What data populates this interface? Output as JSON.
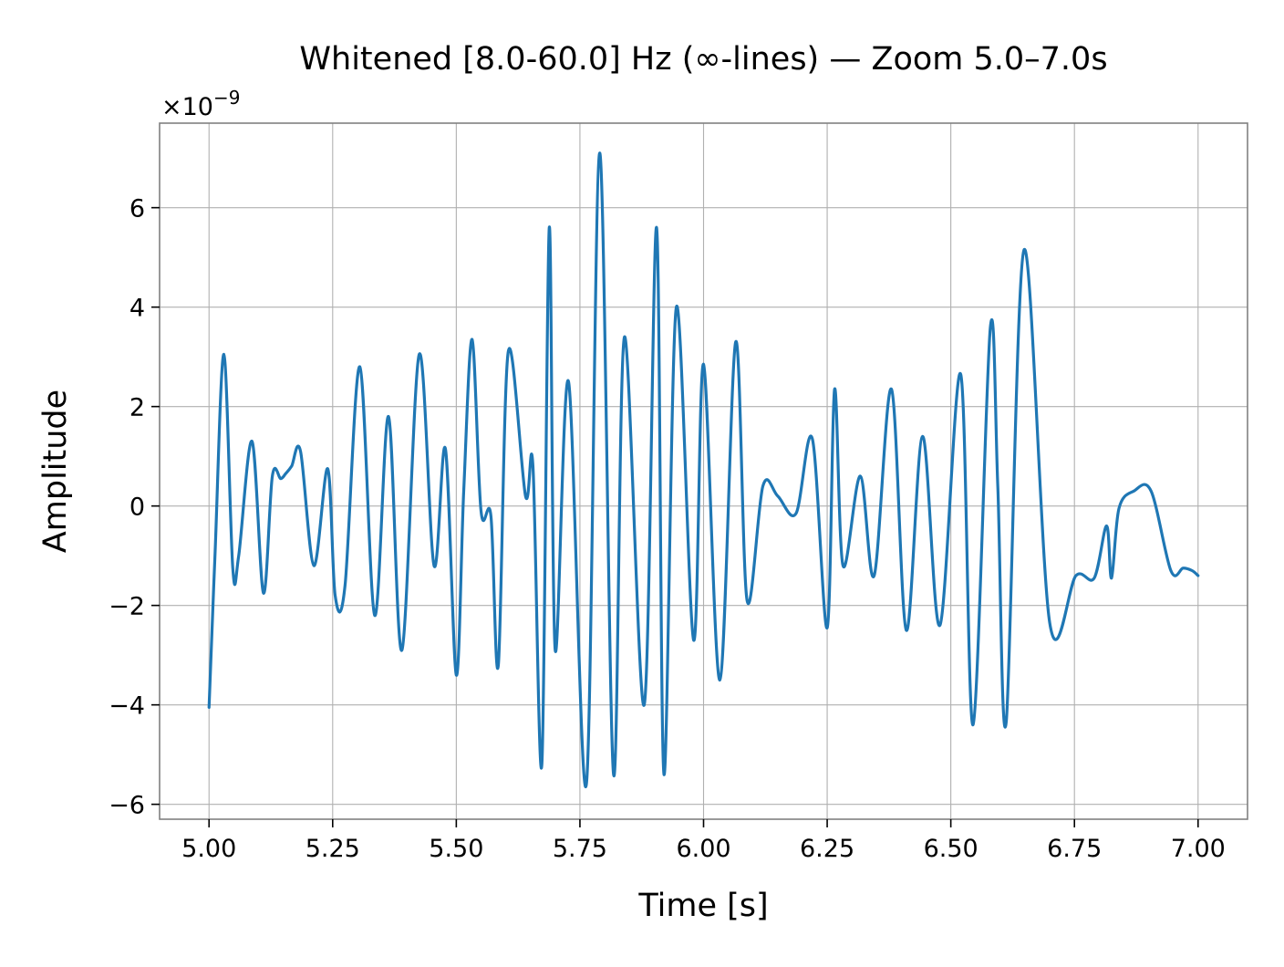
{
  "chart_data": {
    "type": "line",
    "title": "Whitened [8.0-60.0] Hz (∞-lines) — Zoom 5.0–7.0s",
    "xlabel": "Time [s]",
    "ylabel": "Amplitude",
    "y_scale_label": "×10",
    "y_scale_exponent": "−9",
    "xlim": [
      4.9,
      7.1
    ],
    "ylim": [
      -6.3,
      7.7
    ],
    "xticks": [
      5.0,
      5.25,
      5.5,
      5.75,
      6.0,
      6.25,
      6.5,
      6.75,
      7.0
    ],
    "xtick_labels": [
      "5.00",
      "5.25",
      "5.50",
      "5.75",
      "6.00",
      "6.25",
      "6.50",
      "6.75",
      "7.00"
    ],
    "yticks": [
      -6,
      -4,
      -2,
      0,
      2,
      4,
      6
    ],
    "ytick_labels": [
      "−6",
      "−4",
      "−2",
      "0",
      "2",
      "4",
      "6"
    ],
    "grid": true,
    "line_color": "#1f77b4",
    "grid_color": "#b0b0b0",
    "spine_color": "#808080",
    "series": [
      {
        "x": [
          5.0,
          5.012,
          5.03,
          5.048,
          5.06,
          5.087,
          5.11,
          5.128,
          5.145,
          5.155,
          5.167,
          5.185,
          5.212,
          5.24,
          5.255,
          5.275,
          5.305,
          5.335,
          5.363,
          5.39,
          5.425,
          5.455,
          5.478,
          5.5,
          5.515,
          5.532,
          5.55,
          5.57,
          5.585,
          5.605,
          5.64,
          5.655,
          5.673,
          5.688,
          5.7,
          5.727,
          5.763,
          5.79,
          5.818,
          5.84,
          5.88,
          5.905,
          5.92,
          5.945,
          5.98,
          6.0,
          6.033,
          6.065,
          6.088,
          6.12,
          6.15,
          6.187,
          6.22,
          6.25,
          6.265,
          6.282,
          6.317,
          6.345,
          6.38,
          6.41,
          6.443,
          6.478,
          6.52,
          6.545,
          6.58,
          6.595,
          6.612,
          6.648,
          6.7,
          6.753,
          6.79,
          6.815,
          6.825,
          6.84,
          6.87,
          6.905,
          6.945,
          6.97,
          6.988,
          7.0
        ],
        "y": [
          -4.05,
          -1.0,
          3.05,
          -1.25,
          -1.0,
          1.3,
          -1.75,
          0.6,
          0.55,
          0.65,
          0.8,
          1.1,
          -1.2,
          0.75,
          -1.8,
          -1.6,
          2.8,
          -2.2,
          1.8,
          -2.9,
          3.05,
          -1.2,
          1.15,
          -3.4,
          0.3,
          3.35,
          -0.1,
          -0.2,
          -3.2,
          3.1,
          0.2,
          0.8,
          -5.2,
          5.6,
          -2.9,
          2.5,
          -5.6,
          7.1,
          -5.4,
          3.4,
          -4.0,
          5.6,
          -5.4,
          4.0,
          -2.7,
          2.85,
          -3.5,
          3.3,
          -1.9,
          0.4,
          0.2,
          -0.15,
          1.35,
          -2.45,
          2.35,
          -1.2,
          0.6,
          -1.4,
          2.35,
          -2.5,
          1.4,
          -2.4,
          2.65,
          -4.4,
          3.6,
          0.4,
          -4.35,
          5.15,
          -2.35,
          -1.4,
          -1.45,
          -0.4,
          -1.45,
          -0.05,
          0.3,
          0.3,
          -1.3,
          -1.25,
          -1.3,
          -1.4
        ]
      }
    ]
  }
}
